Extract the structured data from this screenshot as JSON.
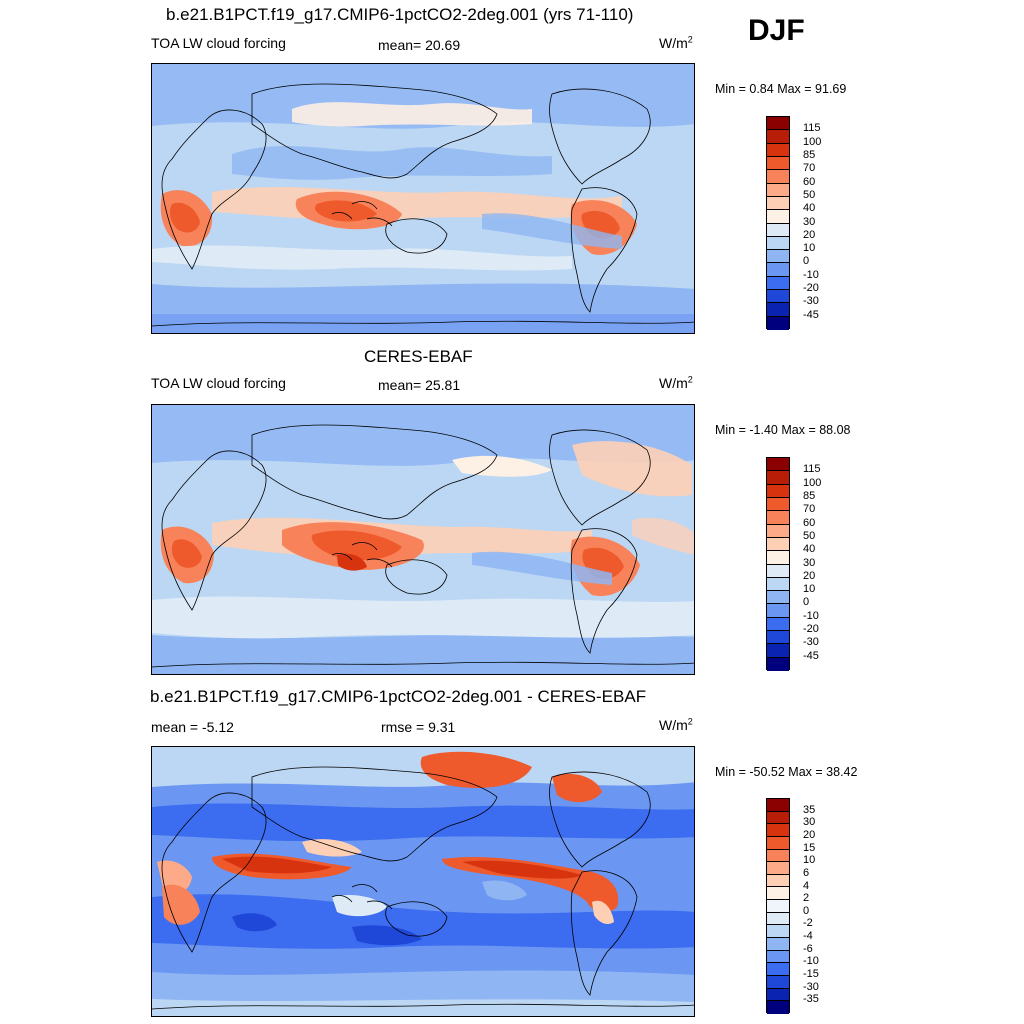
{
  "season": "DJF",
  "panels": [
    {
      "title": "b.e21.B1PCT.f19_g17.CMIP6-1pctCO2-2deg.001 (yrs 71-110)",
      "left_label": "TOA LW cloud forcing",
      "center_label": "mean=  20.69",
      "units_base": "W/m",
      "units_exp": "2",
      "minmax": "Min =   0.84 Max =  91.69",
      "colorbar_ticks": [
        "115",
        "100",
        "85",
        "70",
        "60",
        "50",
        "40",
        "30",
        "20",
        "10",
        "0",
        "-10",
        "-20",
        "-30",
        "-45"
      ],
      "colors": [
        "#8b0000",
        "#b81d07",
        "#d8330f",
        "#ee5a2c",
        "#f8835a",
        "#fcaa88",
        "#fdd0b6",
        "#fdf0e4",
        "#deebf7",
        "#bcd7f3",
        "#8fb6f3",
        "#6b96f2",
        "#3c6cf0",
        "#1f48d8",
        "#0a23b0",
        "#00007e"
      ]
    },
    {
      "title": "CERES-EBAF",
      "left_label": "TOA LW cloud forcing",
      "center_label": "mean=  25.81",
      "units_base": "W/m",
      "units_exp": "2",
      "minmax": "Min =  -1.40 Max =  88.08",
      "colorbar_ticks": [
        "115",
        "100",
        "85",
        "70",
        "60",
        "50",
        "40",
        "30",
        "20",
        "10",
        "0",
        "-10",
        "-20",
        "-30",
        "-45"
      ],
      "colors": [
        "#8b0000",
        "#b81d07",
        "#d8330f",
        "#ee5a2c",
        "#f8835a",
        "#fcaa88",
        "#fdd0b6",
        "#fdf0e4",
        "#deebf7",
        "#bcd7f3",
        "#8fb6f3",
        "#6b96f2",
        "#3c6cf0",
        "#1f48d8",
        "#0a23b0",
        "#00007e"
      ]
    },
    {
      "title": "b.e21.B1PCT.f19_g17.CMIP6-1pctCO2-2deg.001 - CERES-EBAF",
      "left_label": "mean =  -5.12",
      "center_label": "rmse =    9.31",
      "units_base": "W/m",
      "units_exp": "2",
      "minmax": "Min = -50.52 Max =  38.42",
      "colorbar_ticks": [
        "35",
        "30",
        "20",
        "15",
        "10",
        "6",
        "4",
        "2",
        "0",
        "-2",
        "-4",
        "-6",
        "-10",
        "-15",
        "-30",
        "-35"
      ],
      "colors": [
        "#8b0000",
        "#b81d07",
        "#d8330f",
        "#ee5a2c",
        "#f8835a",
        "#fcaa88",
        "#fdd0b6",
        "#fdf0e4",
        "#f0f4fb",
        "#deebf7",
        "#bcd7f3",
        "#8fb6f3",
        "#6b96f2",
        "#3c6cf0",
        "#1f48d8",
        "#0a23b0",
        "#00007e"
      ]
    }
  ],
  "chart_data": [
    {
      "type": "heatmap",
      "title": "b.e21.B1PCT.f19_g17.CMIP6-1pctCO2-2deg.001 (yrs 71-110)",
      "variable": "TOA LW cloud forcing",
      "units": "W/m2",
      "season": "DJF",
      "mean": 20.69,
      "min": 0.84,
      "max": 91.69,
      "levels": [
        -45,
        -30,
        -20,
        -10,
        0,
        10,
        20,
        30,
        40,
        50,
        60,
        70,
        85,
        100,
        115
      ]
    },
    {
      "type": "heatmap",
      "title": "CERES-EBAF",
      "variable": "TOA LW cloud forcing",
      "units": "W/m2",
      "season": "DJF",
      "mean": 25.81,
      "min": -1.4,
      "max": 88.08,
      "levels": [
        -45,
        -30,
        -20,
        -10,
        0,
        10,
        20,
        30,
        40,
        50,
        60,
        70,
        85,
        100,
        115
      ]
    },
    {
      "type": "heatmap",
      "title": "b.e21.B1PCT.f19_g17.CMIP6-1pctCO2-2deg.001 - CERES-EBAF",
      "units": "W/m2",
      "season": "DJF",
      "mean": -5.12,
      "rmse": 9.31,
      "min": -50.52,
      "max": 38.42,
      "levels": [
        -35,
        -30,
        -15,
        -10,
        -6,
        -4,
        -2,
        0,
        2,
        4,
        6,
        10,
        15,
        20,
        30,
        35
      ]
    }
  ]
}
